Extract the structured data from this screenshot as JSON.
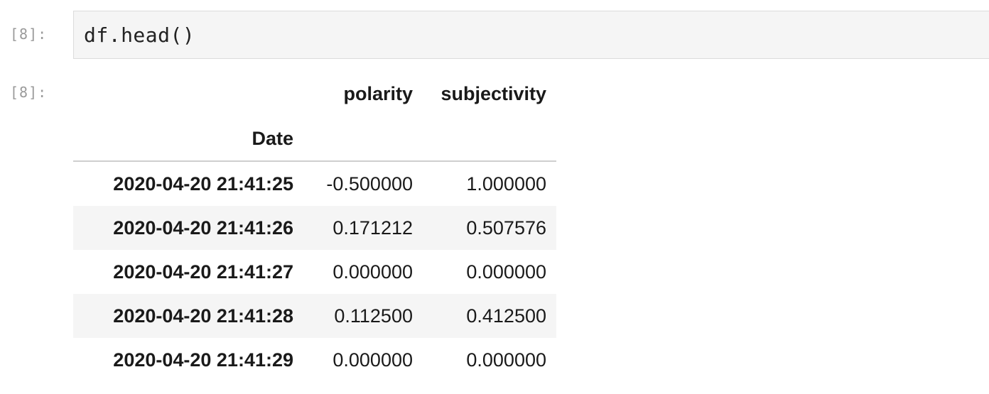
{
  "input_cell": {
    "prompt": "[8]:",
    "code": "df.head()"
  },
  "output_cell": {
    "prompt": "[8]:",
    "table": {
      "columns": [
        "polarity",
        "subjectivity"
      ],
      "index_name": "Date",
      "rows": [
        {
          "index": "2020-04-20 21:41:25",
          "values": [
            "-0.500000",
            "1.000000"
          ]
        },
        {
          "index": "2020-04-20 21:41:26",
          "values": [
            "0.171212",
            "0.507576"
          ]
        },
        {
          "index": "2020-04-20 21:41:27",
          "values": [
            "0.000000",
            "0.000000"
          ]
        },
        {
          "index": "2020-04-20 21:41:28",
          "values": [
            "0.112500",
            "0.412500"
          ]
        },
        {
          "index": "2020-04-20 21:41:29",
          "values": [
            "0.000000",
            "0.000000"
          ]
        }
      ]
    }
  }
}
